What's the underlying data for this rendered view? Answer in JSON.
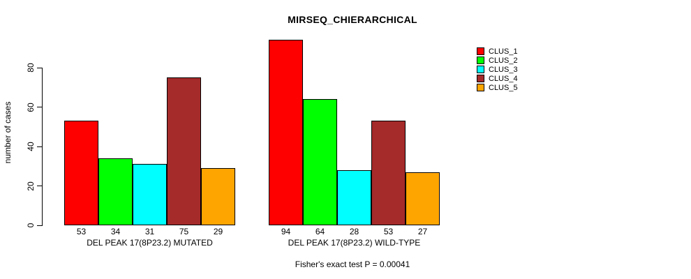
{
  "title": "MIRSEQ_CHIERARCHICAL",
  "ylabel": "number of cases",
  "footnote": "Fisher's exact test P = 0.00041",
  "legend": {
    "position": "right",
    "items": [
      {
        "label": "CLUS_1",
        "color": "#FF0000"
      },
      {
        "label": "CLUS_2",
        "color": "#00FF00"
      },
      {
        "label": "CLUS_3",
        "color": "#00FFFF"
      },
      {
        "label": "CLUS_4",
        "color": "#A52A2A"
      },
      {
        "label": "CLUS_5",
        "color": "#FFA500"
      }
    ]
  },
  "chart_data": {
    "type": "bar",
    "title": "MIRSEQ_CHIERARCHICAL",
    "xlabel": "",
    "ylabel": "number of cases",
    "categories": [
      "DEL PEAK 17(8P23.2) MUTATED",
      "DEL PEAK 17(8P23.2) WILD-TYPE"
    ],
    "series": [
      {
        "name": "CLUS_1",
        "color": "#FF0000",
        "values": [
          53,
          94
        ]
      },
      {
        "name": "CLUS_2",
        "color": "#00FF00",
        "values": [
          34,
          64
        ]
      },
      {
        "name": "CLUS_3",
        "color": "#00FFFF",
        "values": [
          31,
          28
        ]
      },
      {
        "name": "CLUS_4",
        "color": "#A52A2A",
        "values": [
          75,
          53
        ]
      },
      {
        "name": "CLUS_5",
        "color": "#FFA500",
        "values": [
          29,
          27
        ]
      }
    ],
    "bar_value_labels": [
      [
        53,
        34,
        31,
        75,
        29
      ],
      [
        94,
        64,
        28,
        53,
        27
      ]
    ],
    "yticks": [
      0,
      20,
      40,
      60,
      80
    ],
    "ylim": [
      0,
      95
    ],
    "grid": false,
    "legend_position": "right",
    "annotation": "Fisher's exact test P = 0.00041"
  }
}
